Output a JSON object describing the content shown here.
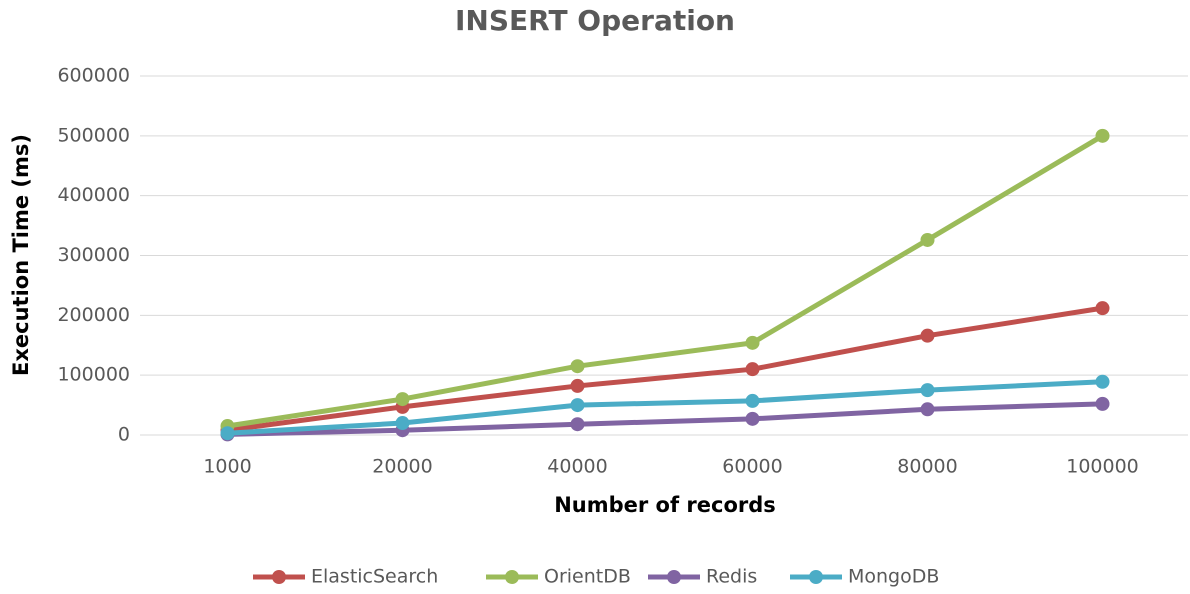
{
  "chart_data": {
    "type": "line",
    "title": "INSERT Operation",
    "x_label": "Number of records",
    "y_label": "Execution Time (ms)",
    "categories": [
      "1000",
      "20000",
      "40000",
      "60000",
      "80000",
      "100000"
    ],
    "series": [
      {
        "name": "ElasticSearch",
        "color": "#c0504d",
        "values": [
          8000,
          47000,
          82000,
          110000,
          166000,
          212000
        ]
      },
      {
        "name": "OrientDB",
        "color": "#9bbb59",
        "values": [
          15000,
          60000,
          115000,
          154000,
          326000,
          500000
        ]
      },
      {
        "name": "Redis",
        "color": "#8064a2",
        "values": [
          1000,
          8000,
          18000,
          27000,
          43000,
          52000
        ]
      },
      {
        "name": "MongoDB",
        "color": "#4bacc6",
        "values": [
          3000,
          20000,
          50000,
          57000,
          75000,
          89000
        ]
      }
    ],
    "ylim": [
      0,
      600000
    ],
    "yticks": [
      0,
      100000,
      200000,
      300000,
      400000,
      500000,
      600000
    ],
    "grid": true,
    "legend": "bottom"
  }
}
